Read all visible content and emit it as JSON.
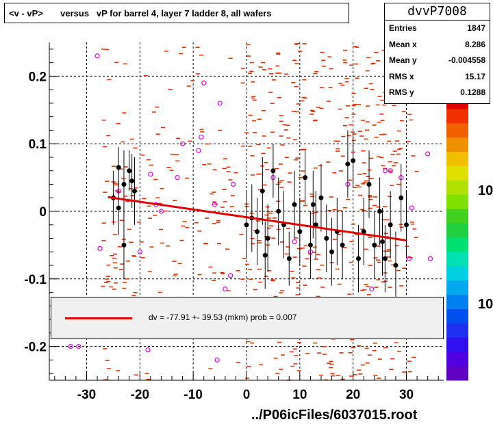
{
  "title": "<v - vP>       versus   vP for barrel 4, layer 7 ladder 8, all wafers",
  "stats": {
    "name": "dvvP7008",
    "rows": [
      {
        "label": "Entries",
        "value": "1847"
      },
      {
        "label": "Mean x",
        "value": "8.286"
      },
      {
        "label": "Mean y",
        "value": "-0.004558"
      },
      {
        "label": "RMS x",
        "value": "15.17"
      },
      {
        "label": "RMS y",
        "value": "0.1288"
      }
    ]
  },
  "fit_text": "dv =  -77.91 +- 39.53 (mkm) prob = 0.007",
  "footer": "../P06icFiles/6037015.root",
  "palette_labels": [
    "10",
    "10"
  ],
  "colors": {
    "scatter": "#e03000",
    "profile": "#000000",
    "wafer": "#e000e0",
    "fit": "#e00000"
  },
  "chart_data": {
    "type": "scatter",
    "xlim": [
      -37,
      37
    ],
    "ylim": [
      -0.25,
      0.25
    ],
    "x_ticks": [
      "-30",
      "-20",
      "-10",
      "0",
      "10",
      "20",
      "30"
    ],
    "y_ticks": [
      "-0.2",
      "-0.1",
      "0",
      "0.1",
      "0.2"
    ],
    "grid": true,
    "fit_line": {
      "x": [
        -26,
        30
      ],
      "y": [
        0.021,
        -0.043
      ]
    },
    "profile_points": [
      {
        "x": -25,
        "y": 0.02,
        "e": 0.04
      },
      {
        "x": -24,
        "y": 0.065,
        "e": 0.03
      },
      {
        "x": -23,
        "y": 0.04,
        "e": 0.05
      },
      {
        "x": -22,
        "y": 0.06,
        "e": 0.03
      },
      {
        "x": -21,
        "y": 0.03,
        "e": 0.05
      },
      {
        "x": -24,
        "y": 0.005,
        "e": 0.04
      },
      {
        "x": -23,
        "y": -0.05,
        "e": 0.05
      },
      {
        "x": -21.5,
        "y": 0.045,
        "e": 0.04
      },
      {
        "x": 0,
        "y": -0.02,
        "e": 0.05
      },
      {
        "x": 1,
        "y": -0.01,
        "e": 0.05
      },
      {
        "x": 2,
        "y": -0.03,
        "e": 0.05
      },
      {
        "x": 3,
        "y": 0.03,
        "e": 0.05
      },
      {
        "x": 4,
        "y": -0.04,
        "e": 0.05
      },
      {
        "x": 5,
        "y": 0.06,
        "e": 0.04
      },
      {
        "x": 6,
        "y": 0.0,
        "e": 0.05
      },
      {
        "x": 7,
        "y": -0.02,
        "e": 0.05
      },
      {
        "x": 8,
        "y": -0.07,
        "e": 0.04
      },
      {
        "x": 9,
        "y": 0.01,
        "e": 0.05
      },
      {
        "x": 10,
        "y": -0.03,
        "e": 0.05
      },
      {
        "x": 11,
        "y": 0.05,
        "e": 0.04
      },
      {
        "x": 12,
        "y": -0.05,
        "e": 0.05
      },
      {
        "x": 13,
        "y": -0.02,
        "e": 0.05
      },
      {
        "x": 14,
        "y": 0.02,
        "e": 0.05
      },
      {
        "x": 15,
        "y": -0.04,
        "e": 0.05
      },
      {
        "x": 16,
        "y": -0.06,
        "e": 0.05
      },
      {
        "x": 17,
        "y": -0.03,
        "e": 0.05
      },
      {
        "x": 18,
        "y": -0.05,
        "e": 0.05
      },
      {
        "x": 19,
        "y": 0.07,
        "e": 0.05
      },
      {
        "x": 20,
        "y": 0.075,
        "e": 0.04
      },
      {
        "x": 21,
        "y": -0.07,
        "e": 0.05
      },
      {
        "x": 22,
        "y": -0.03,
        "e": 0.05
      },
      {
        "x": 23,
        "y": 0.04,
        "e": 0.05
      },
      {
        "x": 24,
        "y": -0.05,
        "e": 0.05
      },
      {
        "x": 25,
        "y": 0.0,
        "e": 0.05
      },
      {
        "x": 26,
        "y": -0.07,
        "e": 0.05
      },
      {
        "x": 27,
        "y": -0.02,
        "e": 0.05
      },
      {
        "x": 28,
        "y": -0.08,
        "e": 0.05
      },
      {
        "x": 29,
        "y": 0.02,
        "e": 0.05
      },
      {
        "x": 30,
        "y": -0.02,
        "e": 0.05
      },
      {
        "x": 3.5,
        "y": -0.065,
        "e": 0.05
      },
      {
        "x": 12.5,
        "y": 0.01,
        "e": 0.05
      },
      {
        "x": 25.5,
        "y": -0.045,
        "e": 0.05
      }
    ],
    "wafer_points": [
      {
        "x": -28,
        "y": 0.23
      },
      {
        "x": -27.5,
        "y": -0.055
      },
      {
        "x": -24,
        "y": 0.03
      },
      {
        "x": -20,
        "y": -0.06
      },
      {
        "x": -18,
        "y": 0.055
      },
      {
        "x": -17,
        "y": 0.01
      },
      {
        "x": -16,
        "y": 0.0
      },
      {
        "x": -13,
        "y": 0.05
      },
      {
        "x": -12,
        "y": 0.1
      },
      {
        "x": -9,
        "y": 0.09
      },
      {
        "x": -8.5,
        "y": 0.11
      },
      {
        "x": -8,
        "y": 0.19
      },
      {
        "x": -6,
        "y": 0.01
      },
      {
        "x": -5,
        "y": 0.16
      },
      {
        "x": -4,
        "y": -0.115
      },
      {
        "x": -2.5,
        "y": 0.04
      },
      {
        "x": -3,
        "y": -0.095
      },
      {
        "x": 5,
        "y": 0.05
      },
      {
        "x": 9,
        "y": -0.045
      },
      {
        "x": 12,
        "y": -0.06
      },
      {
        "x": 19,
        "y": 0.04
      },
      {
        "x": 26,
        "y": 0.06
      },
      {
        "x": 27,
        "y": 0.06
      },
      {
        "x": 29,
        "y": 0.05
      },
      {
        "x": 31,
        "y": 0.005
      },
      {
        "x": 34,
        "y": 0.085
      },
      {
        "x": 34.5,
        "y": -0.07
      },
      {
        "x": -33,
        "y": -0.2
      },
      {
        "x": -31.5,
        "y": -0.2
      },
      {
        "x": -18.5,
        "y": -0.205
      },
      {
        "x": -5.5,
        "y": -0.22
      },
      {
        "x": 23.5,
        "y": -0.115
      },
      {
        "x": 30.5,
        "y": -0.07
      }
    ]
  }
}
